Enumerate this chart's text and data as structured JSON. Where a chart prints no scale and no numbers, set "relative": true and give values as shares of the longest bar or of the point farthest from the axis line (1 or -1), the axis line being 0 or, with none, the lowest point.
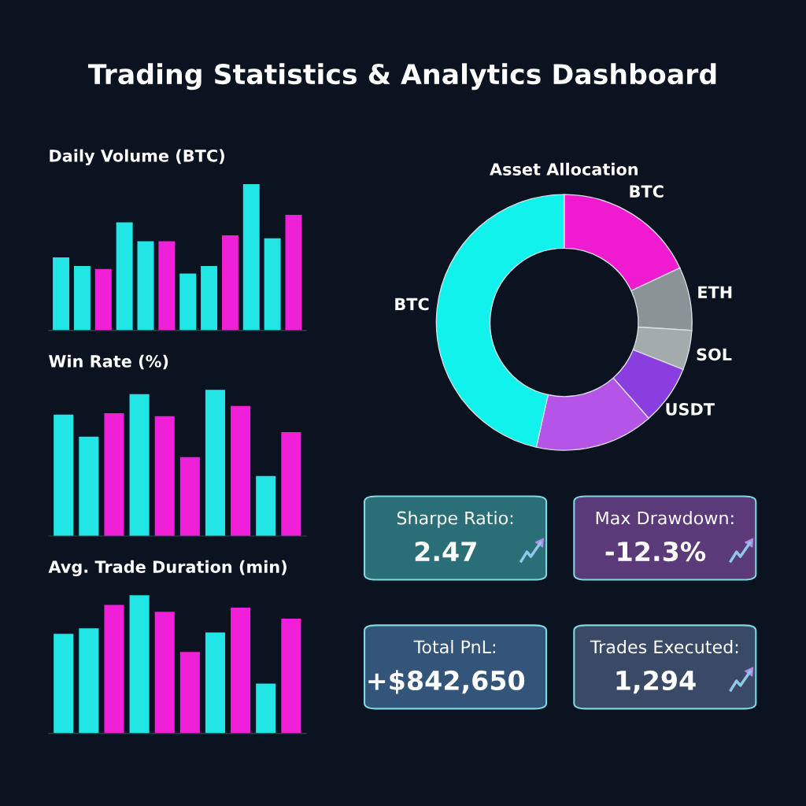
{
  "chart_data": [
    {
      "type": "other",
      "title": "Trading Statistics & Analytics Dashboard"
    },
    {
      "type": "bar",
      "title": "Daily Volume (BTC)",
      "relative": true,
      "grid": false,
      "legend": false,
      "categories": [
        null,
        null,
        null,
        null,
        null,
        null,
        null,
        null,
        null,
        null,
        null,
        null
      ],
      "values": [
        0.5,
        0.44,
        0.42,
        0.74,
        0.61,
        0.61,
        0.39,
        0.44,
        0.65,
        1,
        0.63,
        0.79
      ],
      "colors": [
        "#22e6e6",
        "#22e6e6",
        "#f01fd8",
        "#22e6e6",
        "#22e6e6",
        "#f01fd8",
        "#22e6e6",
        "#22e6e6",
        "#f01fd8",
        "#22e6e6",
        "#22e6e6",
        "#f01fd8"
      ]
    },
    {
      "type": "bar",
      "title": "Win Rate (%)",
      "relative": true,
      "grid": false,
      "legend": false,
      "categories": [
        null,
        null,
        null,
        null,
        null,
        null,
        null,
        null,
        null,
        null
      ],
      "values": [
        0.83,
        0.68,
        0.84,
        0.97,
        0.82,
        0.54,
        1,
        0.89,
        0.41,
        0.71
      ],
      "colors": [
        "#22e6e6",
        "#22e6e6",
        "#f01fd8",
        "#22e6e6",
        "#f01fd8",
        "#f01fd8",
        "#22e6e6",
        "#f01fd8",
        "#22e6e6",
        "#f01fd8"
      ]
    },
    {
      "type": "bar",
      "title": "Avg. Trade Duration (min)",
      "relative": true,
      "grid": false,
      "legend": false,
      "categories": [
        null,
        null,
        null,
        null,
        null,
        null,
        null,
        null,
        null,
        null
      ],
      "values": [
        0.72,
        0.76,
        0.93,
        1,
        0.88,
        0.59,
        0.73,
        0.91,
        0.36,
        0.83
      ],
      "colors": [
        "#22e6e6",
        "#22e6e6",
        "#f01fd8",
        "#22e6e6",
        "#f01fd8",
        "#f01fd8",
        "#22e6e6",
        "#f01fd8",
        "#22e6e6",
        "#f01fd8"
      ]
    },
    {
      "type": "donut",
      "title": "Asset Allocation",
      "legend": false,
      "categories": [
        "BTC",
        "ETH",
        "SOL",
        "USDT",
        null,
        "BTC"
      ],
      "values": [
        18,
        8,
        5,
        7.5,
        15,
        46.5
      ],
      "colors": [
        "#f01ad0",
        "#8a9496",
        "#a3abad",
        "#8a3ee0",
        "#b455e8",
        "#12f2ec"
      ]
    },
    {
      "type": "other",
      "title": "Sharpe Ratio:",
      "annotations": [
        "2.47"
      ],
      "color": "#2a6f78"
    },
    {
      "type": "other",
      "title": "Max Drawdown:",
      "annotations": [
        "-12.3%"
      ],
      "color": "#5a3a78"
    },
    {
      "type": "other",
      "title": "Total PnL:",
      "annotations": [
        "+$842,650"
      ],
      "color": "#34557a"
    },
    {
      "type": "other",
      "title": "Trades Executed:",
      "annotations": [
        "1,294"
      ],
      "color": "#3a4a66"
    }
  ]
}
